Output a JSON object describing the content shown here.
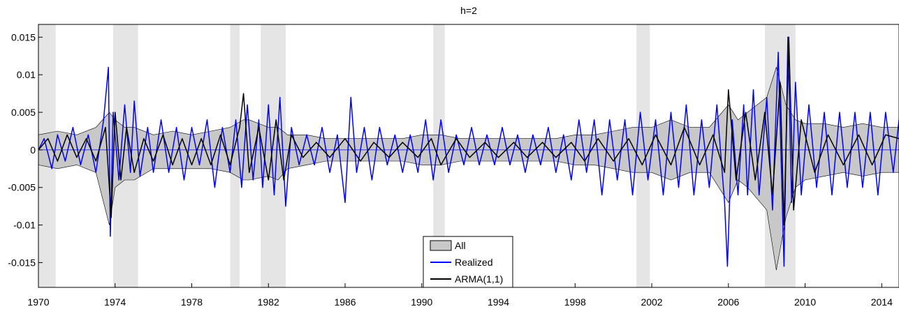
{
  "chart_data": {
    "type": "line",
    "title": "h=2",
    "xlabel": "",
    "ylabel": "",
    "xlim": [
      1970,
      2014.9
    ],
    "ylim": [
      -0.0183,
      0.0167
    ],
    "x_ticks": [
      1970,
      1974,
      1978,
      1982,
      1986,
      1990,
      1994,
      1998,
      2002,
      2006,
      2010,
      2014
    ],
    "y_ticks": [
      0.015,
      0.01,
      0.005,
      0,
      -0.005,
      -0.01,
      -0.015
    ],
    "y_tick_labels": [
      "0.015",
      "0.01",
      "0.005",
      "0",
      "-0.005",
      "-0.01",
      "-0.015"
    ],
    "recession_bands": [
      [
        1970.0,
        1970.9
      ],
      [
        1973.9,
        1975.2
      ],
      [
        1980.0,
        1980.5
      ],
      [
        1981.6,
        1982.9
      ],
      [
        1990.6,
        1991.2
      ],
      [
        2001.2,
        2001.9
      ],
      [
        2007.9,
        2009.5
      ]
    ],
    "legend": {
      "position": "bottom-center",
      "entries": [
        {
          "label": "All",
          "kind": "band"
        },
        {
          "label": "Realized",
          "kind": "line"
        },
        {
          "label": "ARMA(1,1)",
          "kind": "line"
        }
      ]
    },
    "series": [
      {
        "name": "All",
        "kind": "band",
        "color": "#c8c8c8",
        "x": [
          1970.0,
          1971.0,
          1972.0,
          1973.0,
          1973.7,
          1974.0,
          1974.5,
          1975.0,
          1976.0,
          1977.0,
          1978.0,
          1979.0,
          1980.0,
          1980.7,
          1981.0,
          1982.0,
          1982.5,
          1983.0,
          1984.0,
          1985.0,
          1986.0,
          1987.0,
          1988.0,
          1989.0,
          1990.0,
          1991.0,
          1992.0,
          1993.0,
          1994.0,
          1995.0,
          1996.0,
          1997.0,
          1998.0,
          1999.0,
          2000.0,
          2001.0,
          2002.0,
          2003.0,
          2004.0,
          2005.0,
          2006.0,
          2006.5,
          2007.0,
          2008.0,
          2008.5,
          2009.0,
          2009.5,
          2010.0,
          2011.0,
          2012.0,
          2013.0,
          2014.0,
          2014.9
        ],
        "upper": [
          0.002,
          0.0025,
          0.002,
          0.003,
          0.005,
          0.004,
          0.003,
          0.003,
          0.002,
          0.0025,
          0.002,
          0.0025,
          0.003,
          0.004,
          0.004,
          0.003,
          0.003,
          0.002,
          0.002,
          0.0015,
          0.0015,
          0.0015,
          0.0015,
          0.0015,
          0.002,
          0.002,
          0.0015,
          0.0015,
          0.0015,
          0.0015,
          0.0015,
          0.0015,
          0.002,
          0.002,
          0.0025,
          0.003,
          0.003,
          0.004,
          0.003,
          0.003,
          0.006,
          0.004,
          0.005,
          0.007,
          0.011,
          0.006,
          0.004,
          0.0035,
          0.0035,
          0.003,
          0.0035,
          0.003,
          0.003
        ],
        "lower": [
          -0.002,
          -0.0025,
          -0.002,
          -0.003,
          -0.01,
          -0.005,
          -0.004,
          -0.004,
          -0.0025,
          -0.0025,
          -0.0025,
          -0.0025,
          -0.003,
          -0.004,
          -0.004,
          -0.0035,
          -0.004,
          -0.0025,
          -0.002,
          -0.0015,
          -0.0015,
          -0.0015,
          -0.0015,
          -0.0015,
          -0.002,
          -0.002,
          -0.0015,
          -0.0015,
          -0.0015,
          -0.0015,
          -0.0015,
          -0.0015,
          -0.002,
          -0.002,
          -0.0025,
          -0.003,
          -0.003,
          -0.004,
          -0.003,
          -0.003,
          -0.007,
          -0.004,
          -0.005,
          -0.008,
          -0.016,
          -0.009,
          -0.005,
          -0.004,
          -0.0035,
          -0.003,
          -0.0035,
          -0.003,
          -0.003
        ]
      },
      {
        "name": "Realized",
        "color": "#0000ff",
        "x": [
          1970.0,
          1970.3,
          1970.7,
          1971.0,
          1971.4,
          1971.8,
          1972.2,
          1972.6,
          1973.0,
          1973.4,
          1973.65,
          1973.75,
          1973.9,
          1974.2,
          1974.5,
          1974.8,
          1975.0,
          1975.3,
          1975.7,
          1976.0,
          1976.4,
          1976.8,
          1977.2,
          1977.6,
          1978.0,
          1978.4,
          1978.8,
          1979.2,
          1979.6,
          1980.0,
          1980.3,
          1980.6,
          1980.9,
          1981.2,
          1981.5,
          1981.7,
          1982.0,
          1982.3,
          1982.6,
          1982.9,
          1983.2,
          1983.6,
          1984.0,
          1984.4,
          1984.8,
          1985.2,
          1985.6,
          1986.0,
          1986.3,
          1986.6,
          1987.0,
          1987.4,
          1987.8,
          1988.2,
          1988.6,
          1989.0,
          1989.4,
          1989.8,
          1990.2,
          1990.6,
          1991.0,
          1991.4,
          1991.8,
          1992.2,
          1992.6,
          1993.0,
          1993.4,
          1993.8,
          1994.2,
          1994.6,
          1995.0,
          1995.4,
          1995.8,
          1996.2,
          1996.6,
          1997.0,
          1997.4,
          1997.8,
          1998.2,
          1998.6,
          1999.0,
          1999.4,
          1999.8,
          2000.2,
          2000.6,
          2001.0,
          2001.4,
          2001.8,
          2002.2,
          2002.6,
          2003.0,
          2003.4,
          2003.8,
          2004.2,
          2004.6,
          2005.0,
          2005.4,
          2005.8,
          2005.95,
          2006.2,
          2006.5,
          2006.8,
          2007.0,
          2007.3,
          2007.6,
          2008.0,
          2008.3,
          2008.6,
          2008.9,
          2009.1,
          2009.3,
          2009.5,
          2009.8,
          2010.2,
          2010.6,
          2011.0,
          2011.4,
          2011.8,
          2012.2,
          2012.6,
          2013.0,
          2013.4,
          2013.8,
          2014.2,
          2014.6,
          2014.9
        ],
        "y": [
          0.0,
          0.0015,
          -0.0025,
          0.002,
          -0.0015,
          0.003,
          -0.002,
          0.002,
          -0.003,
          0.004,
          0.011,
          -0.0115,
          0.005,
          -0.004,
          0.006,
          -0.003,
          0.0065,
          -0.0035,
          0.003,
          -0.003,
          0.004,
          -0.003,
          0.003,
          -0.004,
          0.003,
          -0.002,
          0.004,
          -0.005,
          0.003,
          -0.003,
          0.004,
          -0.005,
          0.006,
          -0.004,
          0.004,
          -0.005,
          0.006,
          -0.006,
          0.007,
          -0.0075,
          0.003,
          -0.002,
          0.002,
          -0.002,
          0.003,
          -0.003,
          0.002,
          -0.007,
          0.007,
          -0.003,
          0.003,
          -0.004,
          0.003,
          -0.002,
          0.002,
          -0.003,
          0.002,
          -0.003,
          0.004,
          -0.004,
          0.004,
          -0.003,
          0.002,
          -0.002,
          0.003,
          -0.002,
          0.002,
          -0.002,
          0.003,
          -0.002,
          0.002,
          -0.003,
          0.002,
          -0.002,
          0.003,
          -0.003,
          0.002,
          -0.004,
          0.004,
          -0.003,
          0.004,
          -0.006,
          0.004,
          -0.004,
          0.004,
          -0.006,
          0.005,
          -0.004,
          0.004,
          -0.006,
          0.005,
          -0.005,
          0.006,
          -0.006,
          0.004,
          -0.005,
          0.006,
          -0.007,
          -0.0155,
          0.004,
          -0.006,
          0.006,
          -0.006,
          0.008,
          -0.006,
          0.007,
          -0.008,
          0.013,
          -0.0155,
          0.015,
          -0.007,
          0.009,
          -0.006,
          0.006,
          -0.005,
          0.005,
          -0.006,
          0.005,
          -0.005,
          0.005,
          -0.005,
          0.005,
          -0.006,
          0.005,
          -0.003,
          0.004
        ]
      },
      {
        "name": "ARMA(1,1)",
        "color": "#000000",
        "x": [
          1970.0,
          1970.5,
          1971.0,
          1971.5,
          1972.0,
          1972.5,
          1973.0,
          1973.5,
          1973.8,
          1974.0,
          1974.3,
          1974.6,
          1975.0,
          1975.5,
          1976.0,
          1976.5,
          1977.0,
          1977.5,
          1978.0,
          1978.5,
          1979.0,
          1979.5,
          1980.0,
          1980.5,
          1980.7,
          1981.0,
          1981.5,
          1982.0,
          1982.4,
          1982.8,
          1983.2,
          1983.8,
          1984.5,
          1985.2,
          1986.0,
          1986.8,
          1987.5,
          1988.3,
          1989.0,
          1989.8,
          1990.5,
          1991.0,
          1991.8,
          1992.5,
          1993.3,
          1994.0,
          1994.8,
          1995.5,
          1996.3,
          1997.0,
          1997.8,
          1998.5,
          1999.2,
          2000.0,
          2000.8,
          2001.5,
          2002.2,
          2003.0,
          2003.7,
          2004.5,
          2005.2,
          2005.8,
          2006.0,
          2006.4,
          2006.9,
          2007.4,
          2007.9,
          2008.3,
          2008.7,
          2008.9,
          2009.15,
          2009.4,
          2009.8,
          2010.5,
          2011.2,
          2012.0,
          2012.8,
          2013.5,
          2014.2,
          2014.9
        ],
        "y": [
          0.0,
          0.0015,
          -0.0015,
          0.002,
          -0.001,
          0.0015,
          -0.0015,
          0.003,
          -0.009,
          0.005,
          -0.004,
          0.003,
          -0.003,
          0.0015,
          -0.0015,
          0.002,
          -0.002,
          0.0015,
          -0.002,
          0.0015,
          -0.002,
          0.002,
          -0.002,
          0.003,
          0.0075,
          -0.003,
          0.003,
          -0.004,
          0.004,
          -0.004,
          0.002,
          -0.001,
          0.001,
          -0.001,
          0.0015,
          -0.0015,
          0.001,
          -0.001,
          0.001,
          -0.001,
          0.0015,
          -0.002,
          0.0015,
          -0.001,
          0.001,
          -0.001,
          0.001,
          -0.001,
          0.001,
          -0.001,
          0.001,
          -0.0015,
          0.0015,
          -0.0015,
          0.0015,
          -0.002,
          0.002,
          -0.002,
          0.003,
          -0.002,
          0.002,
          -0.003,
          0.008,
          -0.004,
          0.005,
          -0.004,
          0.005,
          -0.006,
          0.009,
          -0.01,
          0.015,
          -0.008,
          0.004,
          -0.003,
          0.002,
          -0.002,
          0.002,
          -0.002,
          0.002,
          0.0015
        ]
      }
    ]
  }
}
